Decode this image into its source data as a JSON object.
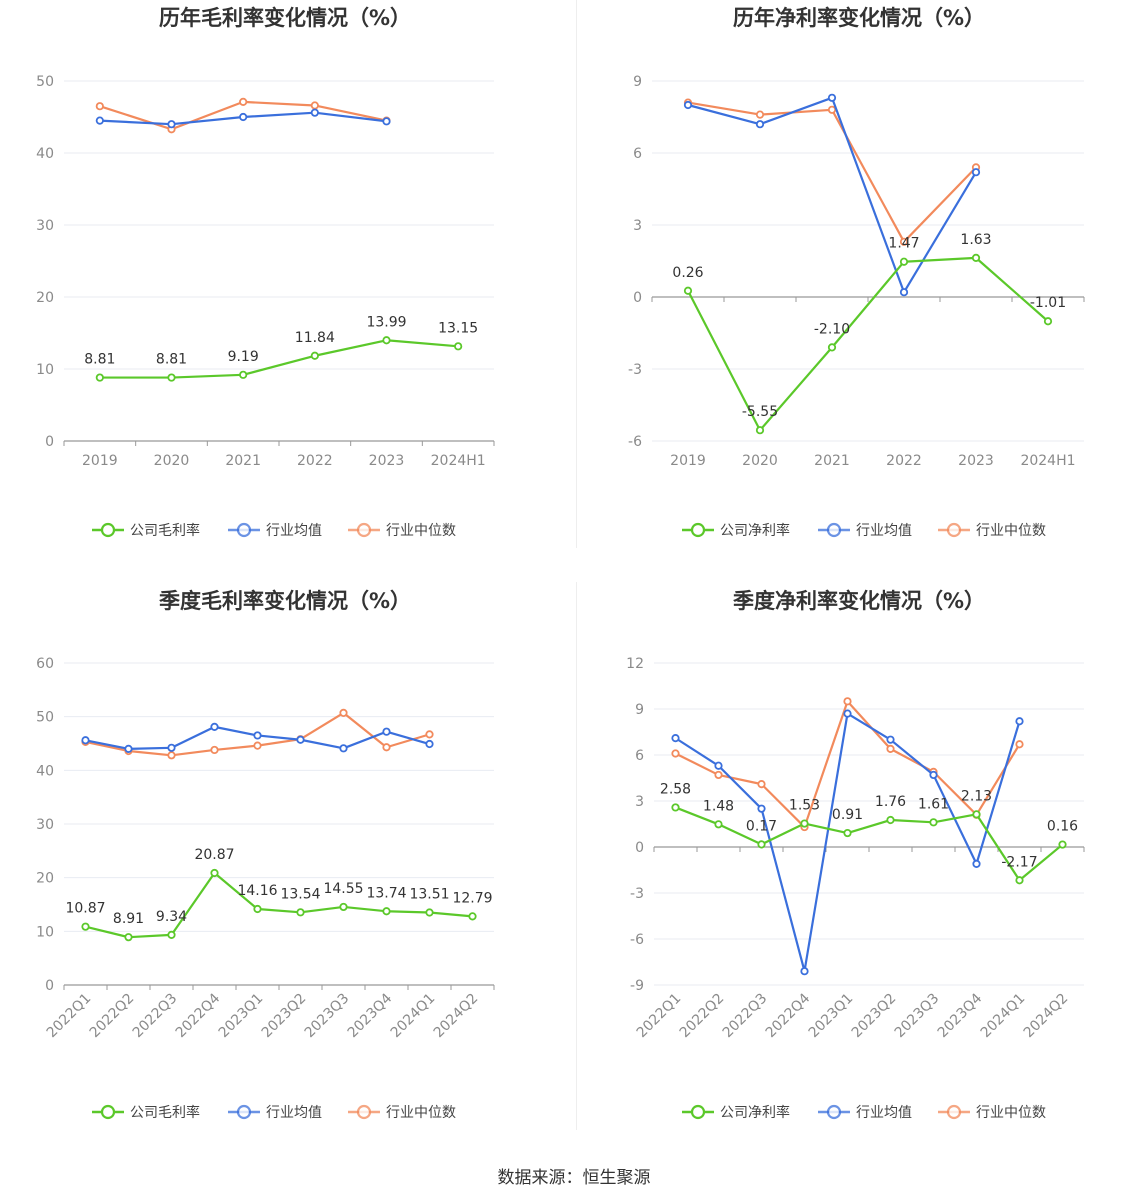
{
  "colors": {
    "company": "#5bc82a",
    "avg": "#3a6fdc",
    "median": "#f28a5c",
    "grid": "#e8ebf2",
    "axis": "#999999"
  },
  "source": "数据来源：恒生聚源",
  "chart_data": [
    {
      "id": "annual-gross",
      "type": "line",
      "title": "历年毛利率变化情况（%）",
      "categories": [
        "2019",
        "2020",
        "2021",
        "2022",
        "2023",
        "2024H1"
      ],
      "ylim": [
        0,
        50
      ],
      "yticks": [
        0,
        10,
        20,
        30,
        40,
        50
      ],
      "series": [
        {
          "name": "公司毛利率",
          "key": "company",
          "values": [
            8.81,
            8.81,
            9.19,
            11.84,
            13.99,
            13.15
          ],
          "labels": [
            "8.81",
            "8.81",
            "9.19",
            "11.84",
            "13.99",
            "13.15"
          ]
        },
        {
          "name": "行业均值",
          "key": "avg",
          "values": [
            44.5,
            44.0,
            45.0,
            45.6,
            44.4,
            null
          ]
        },
        {
          "name": "行业中位数",
          "key": "median",
          "values": [
            46.5,
            43.3,
            47.1,
            46.6,
            44.5,
            null
          ]
        }
      ]
    },
    {
      "id": "annual-net",
      "type": "line",
      "title": "历年净利率变化情况（%）",
      "categories": [
        "2019",
        "2020",
        "2021",
        "2022",
        "2023",
        "2024H1"
      ],
      "ylim": [
        -6,
        9
      ],
      "yticks": [
        -6,
        -3,
        0,
        3,
        6,
        9
      ],
      "series": [
        {
          "name": "公司净利率",
          "key": "company",
          "values": [
            0.26,
            -5.55,
            -2.1,
            1.47,
            1.63,
            -1.01
          ],
          "labels": [
            "0.26",
            "-5.55",
            "-2.10",
            "1.47",
            "1.63",
            "-1.01"
          ]
        },
        {
          "name": "行业均值",
          "key": "avg",
          "values": [
            8.0,
            7.2,
            8.3,
            0.2,
            5.2,
            null
          ]
        },
        {
          "name": "行业中位数",
          "key": "median",
          "values": [
            8.1,
            7.6,
            7.8,
            2.3,
            5.4,
            null
          ]
        }
      ]
    },
    {
      "id": "quarter-gross",
      "type": "line",
      "title": "季度毛利率变化情况（%）",
      "categories": [
        "2022Q1",
        "2022Q2",
        "2022Q3",
        "2022Q4",
        "2023Q1",
        "2023Q2",
        "2023Q3",
        "2023Q4",
        "2024Q1",
        "2024Q2"
      ],
      "ylim": [
        0,
        60
      ],
      "yticks": [
        0,
        10,
        20,
        30,
        40,
        50,
        60
      ],
      "series": [
        {
          "name": "公司毛利率",
          "key": "company",
          "values": [
            10.87,
            8.91,
            9.34,
            20.87,
            14.16,
            13.54,
            14.55,
            13.74,
            13.51,
            12.79
          ],
          "labels": [
            "10.87",
            "8.91",
            "9.34",
            "20.87",
            "14.16",
            "13.54",
            "14.55",
            "13.74",
            "13.51",
            "12.79"
          ]
        },
        {
          "name": "行业均值",
          "key": "avg",
          "values": [
            45.6,
            44.0,
            44.2,
            48.1,
            46.5,
            45.7,
            44.1,
            47.2,
            44.9,
            null
          ]
        },
        {
          "name": "行业中位数",
          "key": "median",
          "values": [
            45.3,
            43.6,
            42.8,
            43.8,
            44.6,
            45.8,
            50.7,
            44.3,
            46.7,
            null
          ]
        }
      ]
    },
    {
      "id": "quarter-net",
      "type": "line",
      "title": "季度净利率变化情况（%）",
      "categories": [
        "2022Q1",
        "2022Q2",
        "2022Q3",
        "2022Q4",
        "2023Q1",
        "2023Q2",
        "2023Q3",
        "2023Q4",
        "2024Q1",
        "2024Q2"
      ],
      "ylim": [
        -9,
        12
      ],
      "yticks": [
        -9,
        -6,
        -3,
        0,
        3,
        6,
        9,
        12
      ],
      "series": [
        {
          "name": "公司净利率",
          "key": "company",
          "values": [
            2.58,
            1.48,
            0.17,
            1.53,
            0.91,
            1.76,
            1.61,
            2.13,
            -2.17,
            0.16
          ],
          "labels": [
            "2.58",
            "1.48",
            "0.17",
            "1.53",
            "0.91",
            "1.76",
            "1.61",
            "2.13",
            "-2.17",
            "0.16"
          ]
        },
        {
          "name": "行业均值",
          "key": "avg",
          "values": [
            7.1,
            5.3,
            2.5,
            -8.1,
            8.7,
            7.0,
            4.7,
            -1.1,
            8.2,
            null
          ]
        },
        {
          "name": "行业中位数",
          "key": "median",
          "values": [
            6.1,
            4.7,
            4.1,
            1.3,
            9.5,
            6.4,
            4.9,
            2.1,
            6.7,
            null
          ]
        }
      ]
    }
  ]
}
